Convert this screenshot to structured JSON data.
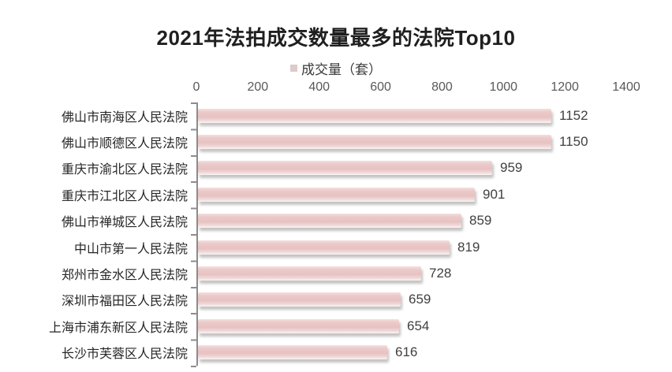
{
  "chart_data": {
    "type": "bar",
    "orientation": "horizontal",
    "title": "2021年法拍成交数量最多的法院Top10",
    "legend": "成交量（套）",
    "legend_position": "top-center",
    "categories": [
      "佛山市南海区人民法院",
      "佛山市顺德区人民法院",
      "重庆市渝北区人民法院",
      "重庆市江北区人民法院",
      "佛山市禅城区人民法院",
      "中山市第一人民法院",
      "郑州市金水区人民法院",
      "深圳市福田区人民法院",
      "上海市浦东新区人民法院",
      "长沙市芙蓉区人民法院"
    ],
    "values": [
      1152,
      1150,
      959,
      901,
      859,
      819,
      728,
      659,
      654,
      616
    ],
    "x_ticks": [
      0,
      200,
      400,
      600,
      800,
      1000,
      1200,
      1400
    ],
    "xlim": [
      0,
      1400
    ],
    "grid": "off",
    "value_labels": "outside-end",
    "colors": {
      "bar": "#e7c2c2",
      "bar_highlight": "#f4dfdf",
      "bar_shadow": "#9a9a9a",
      "axis": "#8c8c8c",
      "title_text": "#1f1f1f",
      "category_text": "#262626",
      "value_text": "#404040",
      "tick_text": "#595959",
      "legend_swatch": "#ddcaca",
      "background": "#ffffff"
    }
  }
}
